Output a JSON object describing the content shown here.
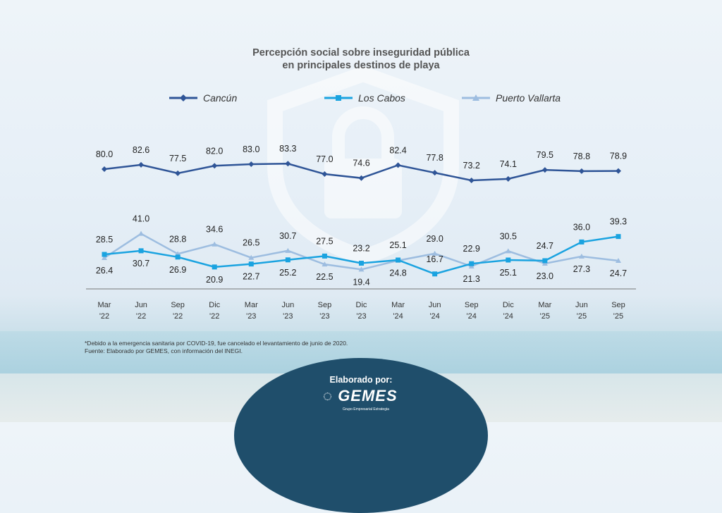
{
  "chart_data": {
    "type": "line",
    "title": "Percepción social sobre inseguridad pública en principales destinos de playa",
    "title_lines": [
      "Percepción social sobre inseguridad pública",
      "en principales destinos de playa"
    ],
    "categories": [
      [
        "Mar",
        "'22"
      ],
      [
        "Jun",
        "'22"
      ],
      [
        "Sep",
        "'22"
      ],
      [
        "Dic",
        "'22"
      ],
      [
        "Mar",
        "'23"
      ],
      [
        "Jun",
        "'23"
      ],
      [
        "Sep",
        "'23"
      ],
      [
        "Dic",
        "'23"
      ],
      [
        "Mar",
        "'24"
      ],
      [
        "Jun",
        "'24"
      ],
      [
        "Sep",
        "'24"
      ],
      [
        "Dic",
        "'24"
      ],
      [
        "Mar",
        "'25"
      ],
      [
        "Jun",
        "'25"
      ],
      [
        "Sep",
        "'25"
      ]
    ],
    "series": [
      {
        "name": "Cancún",
        "color": "#2f5597",
        "marker": "diamond",
        "values": [
          80.0,
          82.6,
          77.5,
          82.0,
          83.0,
          83.3,
          77.0,
          74.6,
          82.4,
          77.8,
          73.2,
          74.1,
          79.5,
          78.8,
          78.9
        ]
      },
      {
        "name": "Los Cabos",
        "color": "#1aa3e0",
        "marker": "square",
        "values": [
          28.5,
          30.7,
          26.9,
          20.9,
          22.7,
          25.2,
          27.5,
          23.2,
          25.1,
          16.7,
          22.9,
          25.1,
          24.7,
          36.0,
          39.3
        ]
      },
      {
        "name": "Puerto Vallarta",
        "color": "#9dbde0",
        "marker": "triangle",
        "values": [
          26.4,
          41.0,
          28.8,
          34.6,
          26.5,
          30.7,
          22.5,
          19.4,
          24.8,
          29.0,
          21.3,
          30.5,
          23.0,
          27.3,
          24.7
        ]
      }
    ],
    "label_positions": {
      "Los Cabos": [
        "above",
        "below",
        "below",
        "below",
        "below",
        "below",
        "above",
        "above",
        "above",
        "above",
        "above",
        "below",
        "above",
        "above",
        "above"
      ],
      "Puerto Vallarta": [
        "below",
        "above",
        "above",
        "above",
        "above",
        "above",
        "below",
        "below",
        "below",
        "above",
        "below",
        "above",
        "below",
        "below",
        "below"
      ]
    },
    "xlabel": "",
    "ylabel": "",
    "grid": false,
    "legend": "top"
  },
  "footnote": [
    "*Debido a la emergencia sanitaria por COVID-19, fue cancelado el levantamiento de junio de 2020.",
    "Fuente: Elaborado por GEMES, con información del INEGI."
  ],
  "credit": "Elaborado por:",
  "logo_text": "GEMES",
  "logo_sub": "Grupo Empresarial Estrategia"
}
